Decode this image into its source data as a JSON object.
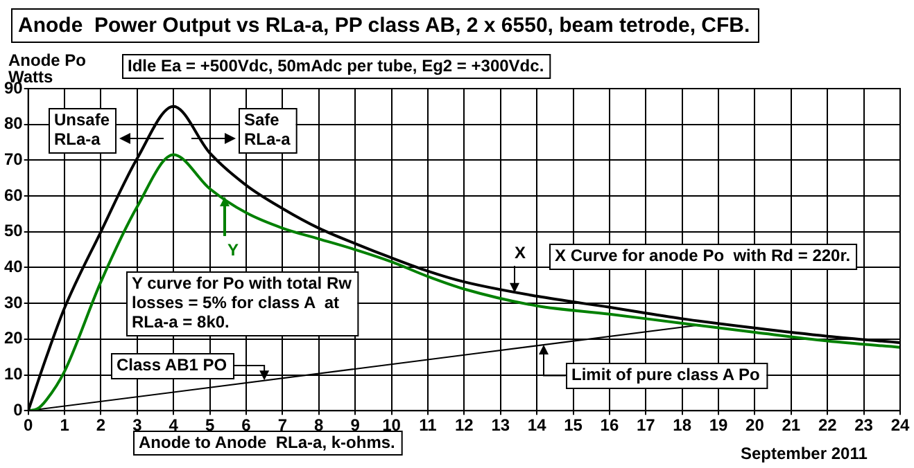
{
  "chart_data": {
    "type": "line",
    "title": "Anode  Power Output vs RLa-a, PP class AB, 2 x 6550, beam tetrode, CFB.",
    "subtitle": "Idle Ea = +500Vdc, 50mAdc per tube, Eg2 = +300Vdc.",
    "xlabel": "Anode to Anode  RLa-a, k-ohms.",
    "ylabel": "Anode Po Watts",
    "series": [
      {
        "color": "#000000",
        "x": [
          0,
          0.5,
          1,
          2,
          3,
          4,
          5,
          6,
          7,
          8,
          9,
          10,
          11,
          12,
          14,
          16,
          18,
          20,
          22,
          24
        ],
        "values": [
          0,
          15,
          28.7,
          50,
          70.5,
          85,
          72,
          63,
          56.5,
          51,
          46.7,
          42.7,
          39,
          36,
          32,
          28.9,
          25.7,
          23.1,
          20.8,
          19
        ]
      },
      {
        "color": "#008000",
        "x": [
          0,
          0.25,
          0.5,
          1,
          2,
          3,
          4,
          5,
          6,
          7,
          8,
          9,
          10,
          11,
          12,
          14,
          16,
          18,
          20,
          22,
          24
        ],
        "values": [
          0,
          0.5,
          3,
          11,
          36,
          57,
          71.5,
          62,
          55.3,
          51,
          48,
          45,
          41.6,
          37.5,
          34,
          29.3,
          27,
          24.4,
          21.9,
          19.5,
          17.7
        ]
      },
      {
        "color": "#000000",
        "x": [
          0,
          18.5
        ],
        "values": [
          0,
          24
        ]
      }
    ],
    "xlim": [
      0,
      24
    ],
    "ylim": [
      0,
      90
    ],
    "xticks": [
      0,
      1,
      2,
      3,
      4,
      5,
      6,
      7,
      8,
      9,
      10,
      11,
      12,
      13,
      14,
      15,
      16,
      17,
      18,
      19,
      20,
      21,
      22,
      23,
      24
    ],
    "yticks": [
      0,
      10,
      20,
      30,
      40,
      50,
      60,
      70,
      80,
      90
    ],
    "grid": true,
    "legend": false,
    "marker": "none",
    "line_style": "solid",
    "annotations": [
      "Unsafe RLa-a",
      "Safe RLa-a",
      {
        "text": "Y",
        "x": 5.4,
        "y": 60
      },
      "Y curve for Po with total Rw losses = 5% for class A  at RLa-a = 8k0.",
      {
        "text": "X",
        "x": 13.4,
        "y": 33
      },
      "X Curve for anode Po  with Rd = 220r.",
      {
        "text": "Class AB1 PO",
        "x": 6.5,
        "y": 8.5
      },
      {
        "text": "Limit of pure class A Po",
        "x": 14.2,
        "y": 18.5
      },
      "September 2011"
    ]
  }
}
